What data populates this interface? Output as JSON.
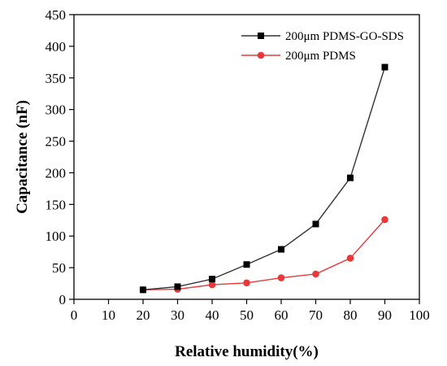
{
  "chart_data": {
    "type": "line",
    "xlabel": "Relative humidity(%)",
    "ylabel": "Capacitance (nF)",
    "xlim": [
      0,
      100
    ],
    "ylim": [
      0,
      450
    ],
    "xticks": [
      "0",
      "10",
      "20",
      "30",
      "40",
      "50",
      "60",
      "70",
      "80",
      "90",
      "100"
    ],
    "yticks": [
      "0",
      "50",
      "100",
      "150",
      "200",
      "250",
      "300",
      "350",
      "400",
      "450"
    ],
    "x": [
      20,
      30,
      40,
      50,
      60,
      70,
      80,
      90
    ],
    "grid": false,
    "legend_position": "top-right",
    "series": [
      {
        "name": "200μm PDMS-GO-SDS",
        "values": [
          15,
          20,
          32,
          55,
          79,
          119,
          192,
          367
        ],
        "marker": "square",
        "line_color": "#333333",
        "marker_color": "#000000"
      },
      {
        "name": "200μm PDMS",
        "values": [
          15,
          16,
          23,
          26,
          34,
          40,
          65,
          126
        ],
        "marker": "circle",
        "line_color": "#e8393a",
        "marker_color": "#e8393a"
      }
    ]
  }
}
